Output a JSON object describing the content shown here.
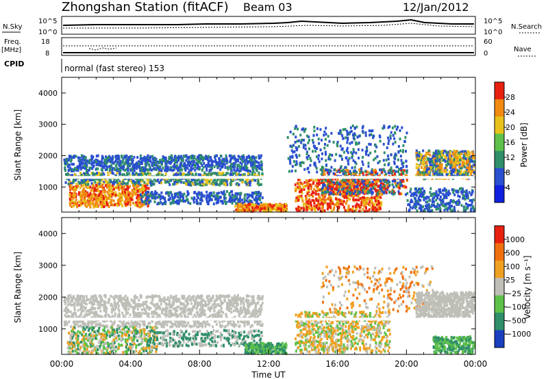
{
  "header": {
    "station": "Zhongshan Station (fitACF)",
    "beam": "Beam 03",
    "date": "12/Jan/2012"
  },
  "panels": {
    "nsky": {
      "left_label": "N.Sky",
      "tick_top": "10^5",
      "tick_bottom": "10^0",
      "right_label": "N.Search",
      "right_tick_top": "10^5",
      "right_tick_bottom": "10^0"
    },
    "freq": {
      "left_label_1": "Freq.",
      "left_label_2": "[MHz]",
      "tick_top": "18",
      "tick_bottom": "8",
      "right_label": "Nave",
      "right_tick_top": "60",
      "right_tick_bottom": "0"
    },
    "cpid": {
      "label": "CPID",
      "text": "normal (fast stereo) 153"
    }
  },
  "chart_data": [
    {
      "type": "heatmap",
      "name": "power",
      "ylabel": "Slant Range [km]",
      "yticks": [
        "1000",
        "2000",
        "3000",
        "4000"
      ],
      "ylim": [
        200,
        4500
      ],
      "x_ticks": [
        "00:00",
        "04:00",
        "08:00",
        "12:00",
        "16:00",
        "20:00",
        "00:00"
      ],
      "colorbar": {
        "label": "Power [dB]",
        "ticks": [
          "4",
          "8",
          "12",
          "16",
          "20",
          "24",
          "28"
        ],
        "colors": [
          "#1020e0",
          "#2a4fd0",
          "#2f8f6a",
          "#5dc14a",
          "#e8c21a",
          "#f08a10",
          "#e82010"
        ]
      }
    },
    {
      "type": "heatmap",
      "name": "velocity",
      "ylabel": "Slant Range [km]",
      "yticks": [
        "1000",
        "2000",
        "3000",
        "4000"
      ],
      "ylim": [
        200,
        4500
      ],
      "x_ticks": [
        "00:00",
        "04:00",
        "08:00",
        "12:00",
        "16:00",
        "20:00",
        "00:00"
      ],
      "xlabel": "Time UT",
      "colorbar": {
        "label": "Velocity [m s⁻¹]",
        "ticks": [
          "1000",
          "500",
          "100",
          "25",
          "−25",
          "−100",
          "−500",
          "−1000"
        ],
        "colors": [
          "#1a3fbf",
          "#2f8f6a",
          "#5dc14a",
          "#bfbfb8",
          "#f0a020",
          "#f07010",
          "#e82010"
        ]
      }
    }
  ],
  "colors": {
    "power_blue": "#2a4fd0",
    "power_green": "#2f8f6a",
    "power_yellow": "#e8c21a",
    "power_orange": "#f08a10",
    "power_red": "#e82010",
    "vel_grey": "#bfbfb8",
    "vel_green": "#2f8f6a",
    "vel_orange": "#f0a020"
  }
}
